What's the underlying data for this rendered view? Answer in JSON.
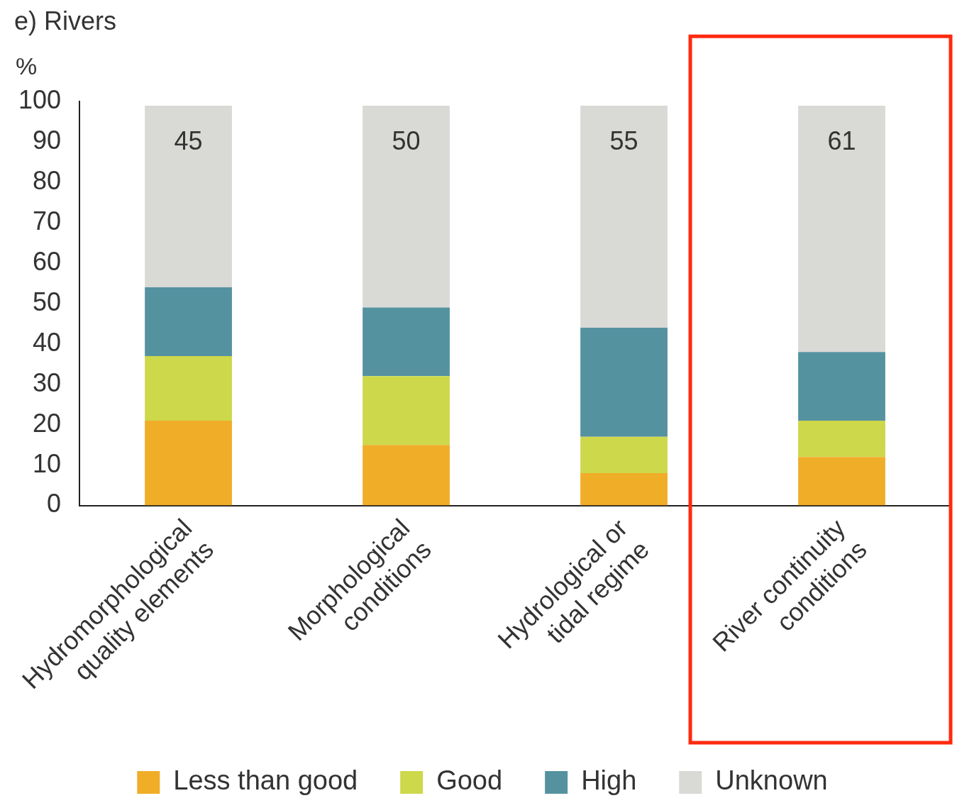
{
  "chart_data": {
    "type": "bar",
    "title": "e) Rivers",
    "ylabel": "%",
    "stacked": true,
    "categories": [
      "Hydromorphological quality elements",
      "Morphological conditions",
      "Hydrological or tidal regime",
      "River continuity conditions"
    ],
    "series": [
      {
        "name": "Less than good",
        "color": "#f0ad28",
        "values": [
          21,
          15,
          8,
          12
        ]
      },
      {
        "name": "Good",
        "color": "#cdd84a",
        "values": [
          16,
          17,
          9,
          9
        ]
      },
      {
        "name": "High",
        "color": "#5592a0",
        "values": [
          17,
          17,
          27,
          17
        ]
      },
      {
        "name": "Unknown",
        "color": "#d9d9d6",
        "values": [
          45,
          50,
          55,
          61
        ],
        "value_labels": [
          "45",
          "50",
          "55",
          "61"
        ]
      }
    ],
    "ylim": [
      0,
      100
    ],
    "yticks": [
      0,
      10,
      20,
      30,
      40,
      50,
      60,
      70,
      80,
      90,
      100
    ],
    "grid": false,
    "legend": "bottom"
  }
}
